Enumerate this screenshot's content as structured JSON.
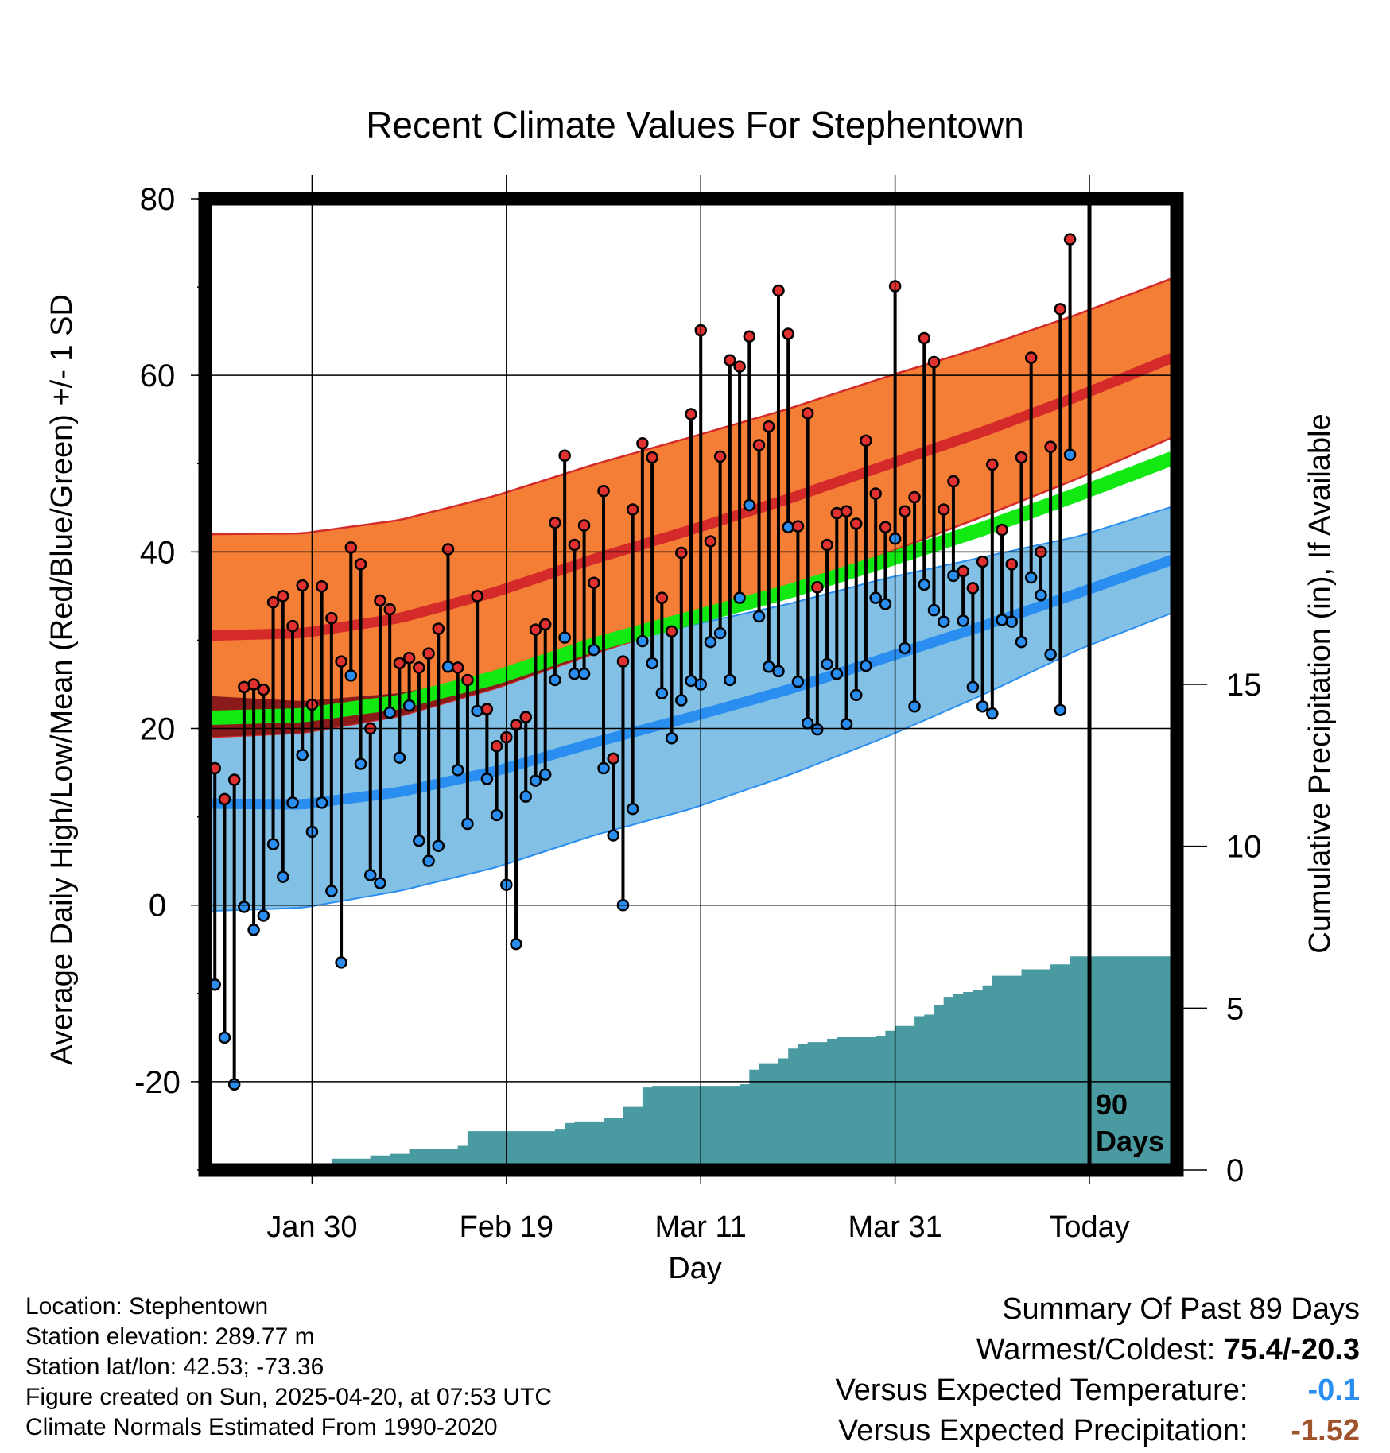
{
  "chart_data": {
    "type": "line",
    "title": "Recent Climate Values For Stephentown",
    "xlabel": "Day",
    "ylabel": "Average Daily High/Low/Mean (Red/Blue/Green) +/- 1 SD",
    "y2label": "Cumulative Precipitation (in), If Available",
    "ylim": [
      -30,
      80
    ],
    "y2lim": [
      0,
      30
    ],
    "yticks": [
      "80",
      "60",
      "40",
      "20",
      "0",
      "-20"
    ],
    "y2ticks": [
      "15",
      "10",
      "5",
      "0"
    ],
    "xticks": [
      "Jan 30",
      "Feb 19",
      "Mar 11",
      "Mar 31",
      "Today"
    ],
    "xtick_days": [
      11,
      31,
      51,
      71,
      91
    ],
    "xlim": [
      0,
      100
    ],
    "today_marker_label": "90\nDays",
    "colors": {
      "high_band": "#f47a30",
      "high_mean": "#d42a2a",
      "low_band": "#82c0e6",
      "low_mean": "#2a8ef0",
      "mean_normal": "#12e812",
      "precip": "#4a9aa2",
      "high_point": "#e03030",
      "low_point": "#2a8ef0"
    },
    "normals": {
      "x": [
        0,
        10,
        20,
        30,
        40,
        50,
        60,
        70,
        80,
        90,
        100
      ],
      "high_mean": [
        30.5,
        30.8,
        32.5,
        35.5,
        39.2,
        42.5,
        46,
        49.8,
        53.6,
        57.7,
        62.2
      ],
      "high_sd": [
        11.5,
        11.3,
        11.1,
        10.9,
        10.7,
        10.5,
        10.2,
        10,
        9.6,
        9.3,
        9
      ],
      "low_mean": [
        11.5,
        11.4,
        12.8,
        15.2,
        18.4,
        21.3,
        24.4,
        28,
        31.6,
        35.4,
        39.3
      ],
      "low_sd": [
        12.2,
        11.7,
        11.2,
        10.9,
        10.5,
        10.4,
        9.7,
        9,
        7.8,
        6.4,
        6
      ],
      "mean": [
        21.2,
        21.5,
        23,
        25.8,
        29.5,
        32.5,
        35.5,
        39,
        42.6,
        46.6,
        50.8
      ]
    },
    "daily": {
      "x": [
        1,
        2,
        3,
        4,
        5,
        6,
        7,
        8,
        9,
        10,
        11,
        12,
        13,
        14,
        15,
        16,
        17,
        18,
        19,
        20,
        21,
        22,
        23,
        24,
        25,
        26,
        27,
        28,
        29,
        30,
        31,
        32,
        33,
        34,
        35,
        36,
        37,
        38,
        39,
        40,
        41,
        42,
        43,
        44,
        45,
        46,
        47,
        48,
        49,
        50,
        51,
        52,
        53,
        54,
        55,
        56,
        57,
        58,
        59,
        60,
        61,
        62,
        63,
        64,
        65,
        66,
        67,
        68,
        69,
        70,
        71,
        72,
        73,
        74,
        75,
        76,
        77,
        78,
        79,
        80,
        81,
        82,
        83,
        84,
        85,
        86,
        87,
        88,
        89
      ],
      "high": [
        15.5,
        12,
        14.2,
        24.7,
        25,
        24.4,
        34.3,
        35,
        31.6,
        36.2,
        22.7,
        36.1,
        32.5,
        27.6,
        40.5,
        38.6,
        20,
        34.5,
        33.5,
        27.4,
        28,
        26.9,
        28.5,
        31.3,
        40.3,
        26.9,
        25.5,
        35,
        22.2,
        18,
        19,
        20.4,
        21.3,
        31.2,
        31.8,
        43.3,
        50.9,
        40.8,
        43,
        36.5,
        46.9,
        16.6,
        27.6,
        44.8,
        52.3,
        50.7,
        34.8,
        31,
        39.9,
        55.6,
        65.1,
        41.2,
        50.8,
        61.7,
        61,
        64.4,
        52.1,
        54.2,
        69.6,
        64.7,
        42.9,
        55.7,
        36,
        40.8,
        44.4,
        44.6,
        43.2,
        52.6,
        46.6,
        42.8,
        70.1,
        44.6,
        46.2,
        64.2,
        61.5,
        44.8,
        48,
        37.8,
        35.9,
        38.9,
        49.9,
        42.5,
        38.6,
        50.7,
        62,
        40,
        51.9,
        67.5,
        75.4
      ],
      "low": [
        -9,
        -15,
        -20.3,
        -0.2,
        -2.8,
        -1.2,
        6.9,
        3.2,
        11.6,
        17,
        8.3,
        11.6,
        1.6,
        -6.5,
        26,
        16,
        3.4,
        2.5,
        21.8,
        16.7,
        22.6,
        7.3,
        5,
        6.7,
        27,
        15.3,
        9.2,
        22,
        14.3,
        10.2,
        2.3,
        -4.4,
        12.3,
        14.1,
        14.8,
        25.5,
        30.3,
        26.2,
        26.2,
        28.9,
        15.5,
        7.9,
        0,
        10.9,
        29.9,
        27.4,
        24,
        18.9,
        23.2,
        25.4,
        25,
        29.8,
        30.8,
        25.5,
        34.8,
        45.3,
        32.7,
        27,
        26.5,
        42.8,
        25.3,
        20.6,
        19.9,
        27.3,
        26.2,
        20.5,
        23.8,
        27.1,
        34.8,
        34.1,
        41.5,
        29.1,
        22.5,
        36.3,
        33.4,
        32.1,
        37.3,
        32.2,
        24.7,
        22.5,
        21.7,
        32.3,
        32.1,
        29.8,
        37.1,
        35.1,
        28.4,
        22.1,
        51
      ]
    },
    "precipitation": {
      "x": [
        0,
        10,
        11,
        13,
        16,
        17,
        19,
        21,
        25,
        26,
        27,
        28,
        30,
        34,
        36,
        37,
        38,
        40,
        41,
        43,
        45,
        46,
        48,
        50,
        52,
        55,
        56,
        57,
        58,
        59,
        60,
        61,
        62,
        64,
        65,
        67,
        68,
        69,
        70,
        71,
        72,
        73,
        74,
        75,
        76,
        77,
        78,
        79,
        80,
        81,
        82,
        84,
        85,
        86,
        87,
        88,
        89,
        90,
        100
      ],
      "cumulative": [
        0,
        0,
        0.2,
        0.35,
        0.35,
        0.45,
        0.5,
        0.65,
        0.65,
        0.75,
        1.2,
        1.2,
        1.2,
        1.2,
        1.25,
        1.45,
        1.5,
        1.5,
        1.6,
        1.95,
        2.55,
        2.6,
        2.6,
        2.6,
        2.6,
        2.65,
        3.1,
        3.3,
        3.3,
        3.45,
        3.75,
        3.9,
        3.95,
        4.05,
        4.1,
        4.1,
        4.1,
        4.15,
        4.3,
        4.45,
        4.45,
        4.75,
        4.8,
        5.1,
        5.35,
        5.45,
        5.5,
        5.55,
        5.7,
        6.0,
        6.0,
        6.2,
        6.2,
        6.2,
        6.35,
        6.35,
        6.6,
        6.6,
        6.6
      ]
    }
  },
  "footer": {
    "location": "Location: Stephentown",
    "elevation": "Station elevation: 289.77 m",
    "latlon": "Station lat/lon: 42.53; -73.36",
    "created": "Figure created on Sun, 2025-04-20, at 07:53 UTC",
    "normals_period": "Climate Normals Estimated From 1990-2020"
  },
  "summary": {
    "heading": "Summary Of Past 89 Days",
    "warm_cold_label": "Warmest/Coldest:",
    "warm_cold_value": "75.4/-20.3",
    "temp_label": "Versus Expected Temperature:",
    "temp_value": "-0.1",
    "temp_color": "#2a8ef0",
    "precip_label": "Versus Expected Precipitation:",
    "precip_value": "-1.52",
    "precip_color": "#a0522d"
  }
}
